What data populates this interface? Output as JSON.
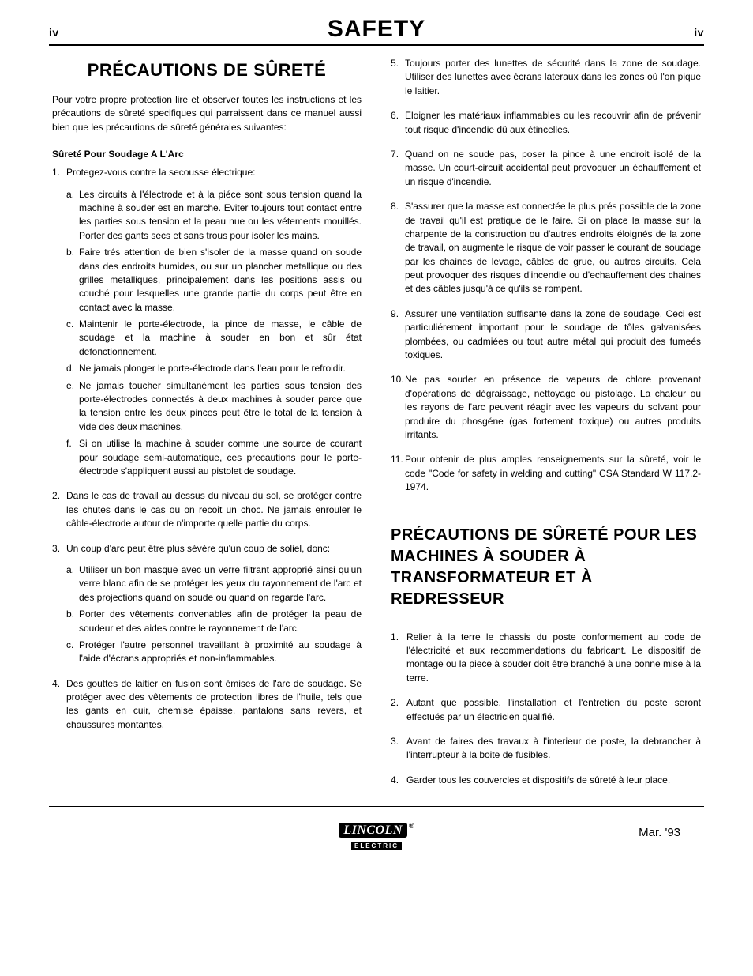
{
  "header": {
    "page_left": "iv",
    "title": "SAFETY",
    "page_right": "iv"
  },
  "section1": {
    "title": "PRÉCAUTIONS DE SÛRETÉ",
    "intro": "Pour votre propre protection lire et observer toutes les instructions et les précautions de sûreté specifiques qui parraissent dans ce manuel aussi bien que les précautions de sûreté générales suivantes:",
    "subhead": "Sûreté Pour Soudage A L'Arc",
    "items": [
      {
        "text": "Protegez-vous contre la secousse électrique:",
        "sub": [
          "Les circuits à l'électrode et à la piéce sont sous tension quand la machine à souder est en marche. Eviter toujours tout contact entre les parties sous tension et la peau nue ou les vétements mouillés. Porter des gants secs et sans trous pour isoler les mains.",
          "Faire trés attention de bien s'isoler de la masse quand on soude dans des endroits humides, ou sur un plancher metallique ou des grilles metalliques, principalement dans les positions assis ou couché pour lesquelles une grande partie du corps peut être en contact avec la masse.",
          "Maintenir le porte-électrode, la pince de masse, le câble de soudage et la machine à souder en bon et sûr état defonctionnement.",
          "Ne jamais plonger le porte-électrode dans l'eau pour le refroidir.",
          "Ne jamais toucher simultanément les parties sous tension des porte-électrodes connectés à deux machines à souder parce que la tension entre les deux pinces peut être le total de la tension à vide des deux machines.",
          "Si on utilise la machine à souder comme une source de courant pour soudage semi-automatique, ces precautions pour le porte-électrode s'appliquent aussi au pistolet de soudage."
        ]
      },
      {
        "text": "Dans le cas de travail au dessus du niveau du sol, se protéger contre les chutes dans le cas ou on recoit un choc. Ne jamais enrouler le câble-électrode autour de n'importe quelle partie du corps."
      },
      {
        "text": "Un coup d'arc peut être plus sévère qu'un coup de soliel, donc:",
        "sub": [
          "Utiliser un bon masque avec un verre filtrant approprié ainsi qu'un verre blanc afin de se protéger les yeux du rayonnement de l'arc et des projections quand on soude ou quand on regarde l'arc.",
          "Porter des vêtements convenables afin de protéger la peau de soudeur et des aides contre le rayonnement de l'arc.",
          "Protéger l'autre personnel travaillant à proximité au soudage à l'aide d'écrans appropriés et non-inflammables."
        ]
      },
      {
        "text": "Des gouttes de laitier en fusion sont émises de l'arc de soudage. Se protéger avec des vêtements de protection libres de l'huile, tels que les gants en cuir, chemise épaisse, pantalons sans revers, et chaussures montantes."
      }
    ],
    "items_cont": [
      {
        "text": "Toujours porter des lunettes de sécurité dans la zone de soudage. Utiliser des lunettes avec écrans lateraux dans les zones où l'on pique le laitier."
      },
      {
        "text": "Eloigner les matériaux inflammables ou les recouvrir afin de prévenir tout risque d'incendie dû aux étincelles."
      },
      {
        "text": "Quand on ne soude pas, poser la pince à une endroit isolé de la masse. Un court-circuit accidental peut provoquer un échauffement et un risque d'incendie."
      },
      {
        "text": "S'assurer que la masse est connectée le plus prés possible de la zone de travail qu'il est pratique de le faire. Si on place la masse sur la charpente de la construction ou d'autres endroits éloignés de la zone de travail, on augmente le risque de voir passer le courant de soudage par les chaines de levage, câbles de grue, ou autres circuits. Cela peut provoquer des risques d'incendie ou d'echauffement des chaines et des câbles jusqu'à ce qu'ils se rompent."
      },
      {
        "text": "Assurer une ventilation suffisante dans la zone de soudage. Ceci est particuliérement important pour le soudage de tôles galvanisées plombées, ou cadmiées ou tout autre métal qui produit des fumeés toxiques."
      },
      {
        "text": "Ne pas souder en présence de vapeurs de chlore provenant d'opérations de dégraissage, nettoyage ou pistolage. La chaleur ou les rayons de l'arc peuvent réagir avec les vapeurs du solvant pour produire du phosgéne (gas fortement toxique) ou autres produits irritants."
      },
      {
        "text": "Pour obtenir de plus amples renseignements sur la sûreté, voir le code \"Code for safety in welding and cutting\" CSA Standard W 117.2-1974."
      }
    ]
  },
  "section2": {
    "title": "PRÉCAUTIONS DE SÛRETÉ POUR LES MACHINES À SOUDER À TRANSFORMATEUR ET À REDRESSEUR",
    "items": [
      "Relier à la terre le chassis du poste conformement au code de l'électricité et aux recommendations du fabricant. Le dispositif de montage ou la piece à souder doit être branché à une bonne mise à la terre.",
      "Autant que possible, l'installation et l'entretien du poste seront effectués par un électricien qualifié.",
      "Avant de faires des travaux à l'interieur de poste, la debrancher à l'interrupteur à la boite de fusibles.",
      "Garder tous les couvercles et dispositifs de sûreté à leur place."
    ]
  },
  "footer": {
    "brand": "LINCOLN",
    "brand_sub": "ELECTRIC",
    "reg": "®",
    "date": "Mar. '93"
  }
}
